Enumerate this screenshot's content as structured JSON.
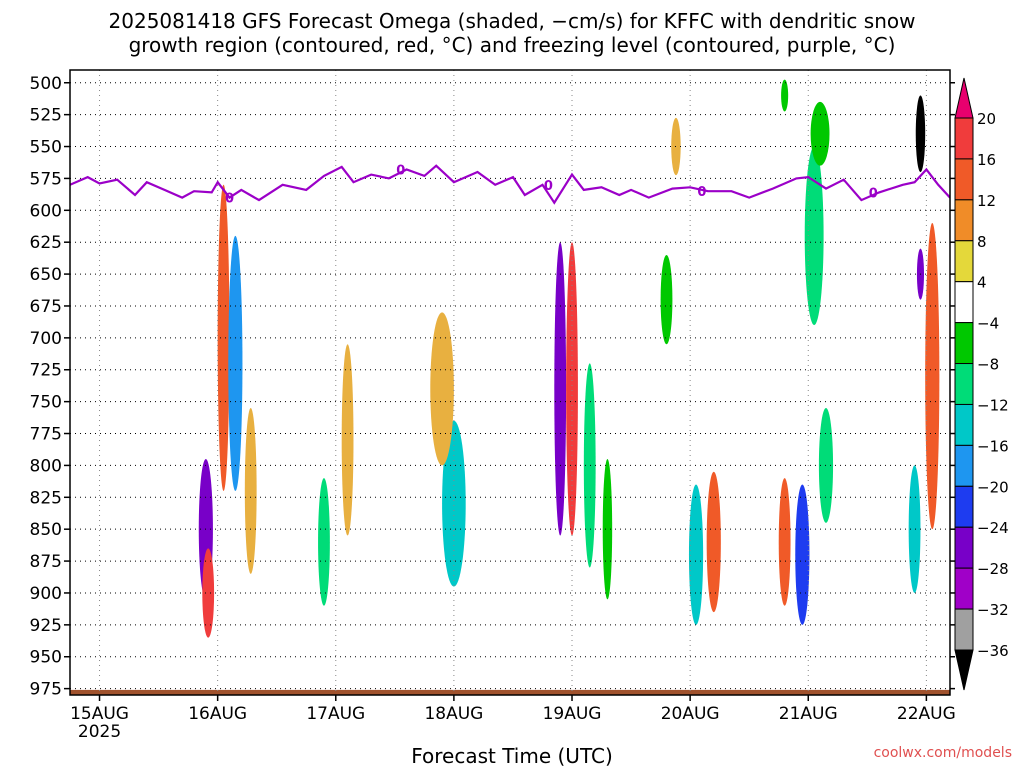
{
  "title_line1": "2025081418 GFS Forecast Omega (shaded, −cm/s) for KFFC with dendritic snow",
  "title_line2": "growth region (contoured, red, °C) and freezing level (contoured, purple, °C)",
  "source": "coolwx.com/models",
  "chart_data": {
    "type": "heatmap",
    "title": "2025081418 GFS Forecast Omega (shaded, −cm/s) for KFFC with dendritic snow growth region (contoured, red, °C) and freezing level (contoured, purple, °C)",
    "xlabel": "Forecast Time (UTC)",
    "ylabel": "",
    "x_ticks": [
      "15AUG",
      "16AUG",
      "17AUG",
      "18AUG",
      "19AUG",
      "20AUG",
      "21AUG",
      "22AUG"
    ],
    "x_year": "2025",
    "y_ticks": [
      500,
      525,
      550,
      575,
      600,
      625,
      650,
      675,
      700,
      725,
      750,
      775,
      800,
      825,
      850,
      875,
      900,
      925,
      950,
      975
    ],
    "ylim": [
      980,
      490
    ],
    "xlim": [
      -0.25,
      7.2
    ],
    "grid": true,
    "colorbar": {
      "labels": [
        "20",
        "16",
        "12",
        "8",
        "4",
        "−4",
        "−8",
        "−12",
        "−16",
        "−20",
        "−24",
        "−28",
        "−32",
        "−36"
      ],
      "colors": [
        "#e8006e",
        "#f03c3c",
        "#f05a28",
        "#f08c28",
        "#e8b040",
        "#e4d83a",
        "#ffffff",
        "#00c800",
        "#00dc78",
        "#00c8c8",
        "#1e96f0",
        "#1e3cf0",
        "#7800c8",
        "#a000c8",
        "#a0a0a0",
        "#000000"
      ]
    },
    "freezing_level": {
      "label": "0",
      "x": [
        -0.25,
        -0.1,
        0.0,
        0.15,
        0.3,
        0.4,
        0.55,
        0.7,
        0.8,
        0.95,
        1.0,
        1.1,
        1.2,
        1.35,
        1.55,
        1.75,
        1.9,
        2.05,
        2.15,
        2.3,
        2.45,
        2.6,
        2.75,
        2.85,
        3.0,
        3.2,
        3.35,
        3.5,
        3.6,
        3.75,
        3.85,
        4.0,
        4.1,
        4.25,
        4.4,
        4.5,
        4.65,
        4.85,
        5.0,
        5.15,
        5.35,
        5.5,
        5.7,
        5.9,
        6.0,
        6.15,
        6.3,
        6.45,
        6.6,
        6.8,
        6.9,
        7.0,
        7.1,
        7.2
      ],
      "y": [
        580,
        574,
        579,
        576,
        588,
        578,
        584,
        590,
        585,
        586,
        578,
        590,
        584,
        592,
        580,
        584,
        573,
        566,
        578,
        572,
        575,
        568,
        573,
        565,
        578,
        570,
        580,
        574,
        588,
        580,
        594,
        572,
        584,
        582,
        588,
        584,
        590,
        583,
        582,
        585,
        585,
        590,
        583,
        575,
        574,
        583,
        576,
        592,
        586,
        580,
        578,
        568,
        580,
        590
      ]
    },
    "omega_blobs": [
      {
        "t": 0.9,
        "p": 850,
        "dt": 0.06,
        "dp": 110,
        "value": -24
      },
      {
        "t": 0.92,
        "p": 900,
        "dt": 0.05,
        "dp": 70,
        "value": 18
      },
      {
        "t": 1.05,
        "p": 700,
        "dt": 0.05,
        "dp": 240,
        "value": 14
      },
      {
        "t": 1.15,
        "p": 720,
        "dt": 0.06,
        "dp": 200,
        "value": -16
      },
      {
        "t": 1.28,
        "p": 820,
        "dt": 0.05,
        "dp": 130,
        "value": 6
      },
      {
        "t": 2.1,
        "p": 780,
        "dt": 0.05,
        "dp": 150,
        "value": 6
      },
      {
        "t": 1.9,
        "p": 860,
        "dt": 0.05,
        "dp": 100,
        "value": -8
      },
      {
        "t": 3.0,
        "p": 830,
        "dt": 0.1,
        "dp": 130,
        "value": -14
      },
      {
        "t": 2.9,
        "p": 740,
        "dt": 0.1,
        "dp": 120,
        "value": 6
      },
      {
        "t": 3.9,
        "p": 740,
        "dt": 0.05,
        "dp": 230,
        "value": -24
      },
      {
        "t": 4.0,
        "p": 740,
        "dt": 0.05,
        "dp": 230,
        "value": 16
      },
      {
        "t": 4.15,
        "p": 800,
        "dt": 0.05,
        "dp": 160,
        "value": -10
      },
      {
        "t": 4.3,
        "p": 850,
        "dt": 0.04,
        "dp": 110,
        "value": -6
      },
      {
        "t": 4.8,
        "p": 670,
        "dt": 0.05,
        "dp": 70,
        "value": -6
      },
      {
        "t": 5.05,
        "p": 870,
        "dt": 0.06,
        "dp": 110,
        "value": -14
      },
      {
        "t": 5.2,
        "p": 860,
        "dt": 0.06,
        "dp": 110,
        "value": 12
      },
      {
        "t": 4.88,
        "p": 550,
        "dt": 0.04,
        "dp": 45,
        "value": 6
      },
      {
        "t": 5.8,
        "p": 860,
        "dt": 0.05,
        "dp": 100,
        "value": 12
      },
      {
        "t": 5.95,
        "p": 870,
        "dt": 0.06,
        "dp": 110,
        "value": -22
      },
      {
        "t": 6.05,
        "p": 620,
        "dt": 0.08,
        "dp": 140,
        "value": -8
      },
      {
        "t": 6.15,
        "p": 800,
        "dt": 0.06,
        "dp": 90,
        "value": -10
      },
      {
        "t": 6.1,
        "p": 540,
        "dt": 0.08,
        "dp": 50,
        "value": -6
      },
      {
        "t": 5.8,
        "p": 510,
        "dt": 0.03,
        "dp": 25,
        "value": -6
      },
      {
        "t": 6.9,
        "p": 850,
        "dt": 0.05,
        "dp": 100,
        "value": -12
      },
      {
        "t": 6.95,
        "p": 650,
        "dt": 0.03,
        "dp": 40,
        "value": -24
      },
      {
        "t": 7.05,
        "p": 730,
        "dt": 0.06,
        "dp": 240,
        "value": 12
      },
      {
        "t": 6.95,
        "p": 540,
        "dt": 0.04,
        "dp": 60,
        "value": -36
      }
    ],
    "ground": {
      "p_top": 976,
      "color": "#a0522d"
    }
  }
}
